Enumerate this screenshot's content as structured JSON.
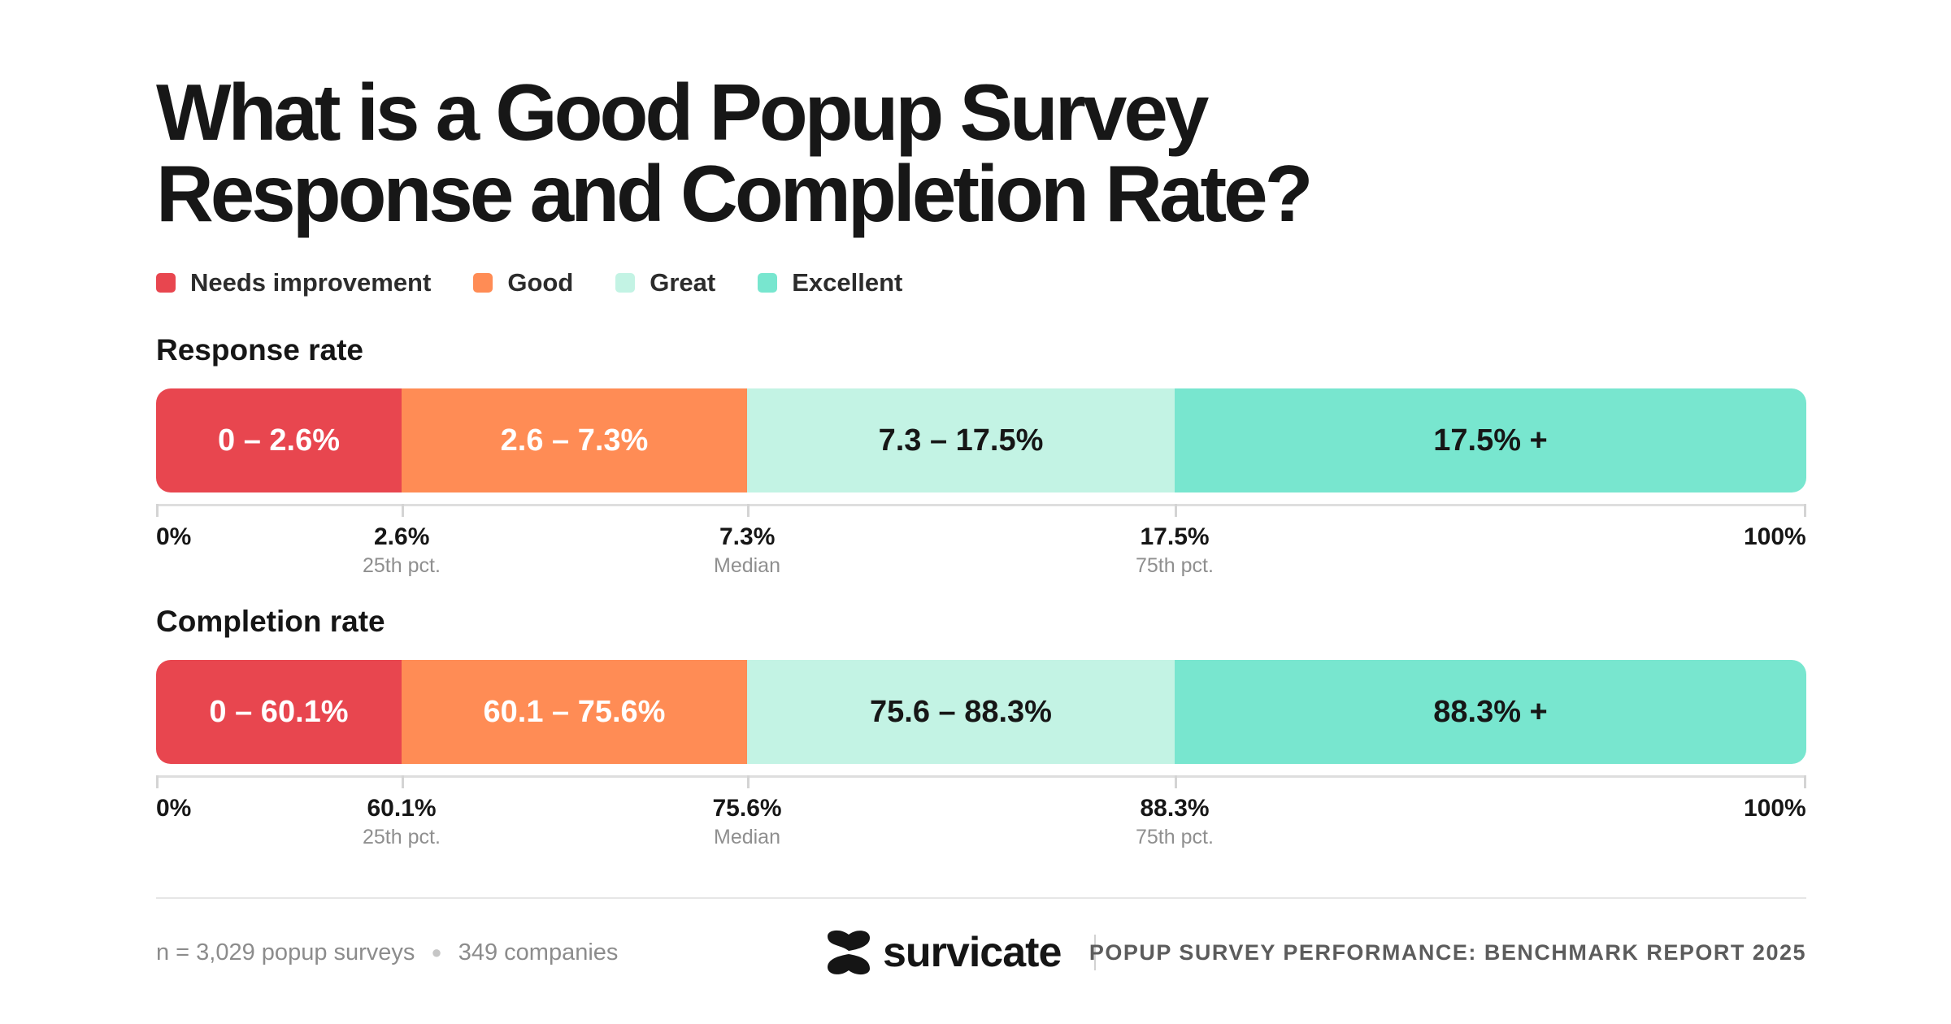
{
  "title": {
    "line1": "What is a Good Popup Survey",
    "line2": "Response and Completion Rate?"
  },
  "legend": [
    {
      "label": "Needs improvement",
      "color": "#e8464f"
    },
    {
      "label": "Good",
      "color": "#ff8c55"
    },
    {
      "label": "Great",
      "color": "#c3f3e4"
    },
    {
      "label": "Excellent",
      "color": "#78e6cf"
    }
  ],
  "chart_data": [
    {
      "type": "bar",
      "title": "Response rate",
      "scale": "nonlinear",
      "ylim": [
        0,
        100
      ],
      "segments": [
        {
          "label": "0 – 2.6%",
          "category": "Needs improvement",
          "start": 0,
          "end": 2.6,
          "color": "#e8464f",
          "text_color": "#ffffff"
        },
        {
          "label": "2.6 – 7.3%",
          "category": "Good",
          "start": 2.6,
          "end": 7.3,
          "color": "#ff8c55",
          "text_color": "#ffffff"
        },
        {
          "label": "7.3 – 17.5%",
          "category": "Great",
          "start": 7.3,
          "end": 17.5,
          "color": "#c3f3e4",
          "text_color": "#161616"
        },
        {
          "label": "17.5% +",
          "category": "Excellent",
          "start": 17.5,
          "end": 100,
          "color": "#78e6cf",
          "text_color": "#161616"
        }
      ],
      "ticks": [
        {
          "value": 0,
          "label": "0%",
          "sublabel": ""
        },
        {
          "value": 2.6,
          "label": "2.6%",
          "sublabel": "25th pct."
        },
        {
          "value": 7.3,
          "label": "7.3%",
          "sublabel": "Median"
        },
        {
          "value": 17.5,
          "label": "17.5%",
          "sublabel": "75th pct."
        },
        {
          "value": 100,
          "label": "100%",
          "sublabel": ""
        }
      ]
    },
    {
      "type": "bar",
      "title": "Completion rate",
      "scale": "nonlinear",
      "ylim": [
        0,
        100
      ],
      "segments": [
        {
          "label": "0 – 60.1%",
          "category": "Needs improvement",
          "start": 0,
          "end": 60.1,
          "color": "#e8464f",
          "text_color": "#ffffff"
        },
        {
          "label": "60.1 – 75.6%",
          "category": "Good",
          "start": 60.1,
          "end": 75.6,
          "color": "#ff8c55",
          "text_color": "#ffffff"
        },
        {
          "label": "75.6 – 88.3%",
          "category": "Great",
          "start": 75.6,
          "end": 88.3,
          "color": "#c3f3e4",
          "text_color": "#161616"
        },
        {
          "label": "88.3% +",
          "category": "Excellent",
          "start": 88.3,
          "end": 100,
          "color": "#78e6cf",
          "text_color": "#161616"
        }
      ],
      "ticks": [
        {
          "value": 0,
          "label": "0%",
          "sublabel": ""
        },
        {
          "value": 60.1,
          "label": "60.1%",
          "sublabel": "25th pct."
        },
        {
          "value": 75.6,
          "label": "75.6%",
          "sublabel": "Median"
        },
        {
          "value": 88.3,
          "label": "88.3%",
          "sublabel": "75th pct."
        },
        {
          "value": 100,
          "label": "100%",
          "sublabel": ""
        }
      ]
    }
  ],
  "footer": {
    "sample": "n = 3,029 popup surveys",
    "companies": "349 companies",
    "brand": "survicate",
    "report": "POPUP SURVEY PERFORMANCE: BENCHMARK REPORT 2025"
  }
}
